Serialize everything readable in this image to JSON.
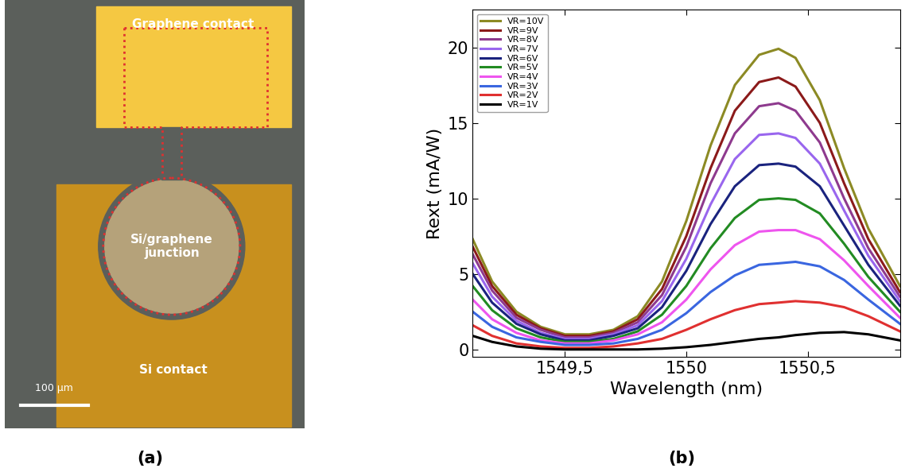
{
  "panel_labels": [
    "(a)",
    "(b)"
  ],
  "micrograph": {
    "labels": {
      "graphene_contact": "Graphene contact",
      "junction": "Si/graphene\njunction",
      "si_contact": "Si contact"
    },
    "scale_bar": "100 μm"
  },
  "chart_data": {
    "type": "line",
    "x_label": "Wavelength (nm)",
    "y_label": "Rext (mA/W)",
    "x": [
      1549.12,
      1549.2,
      1549.3,
      1549.4,
      1549.5,
      1549.6,
      1549.7,
      1549.8,
      1549.9,
      1550.0,
      1550.1,
      1550.2,
      1550.3,
      1550.38,
      1550.45,
      1550.55,
      1550.65,
      1550.75,
      1550.88
    ],
    "xlim": [
      1549.12,
      1550.88
    ],
    "xticks": [
      {
        "value": 1549.5,
        "label": "1549,5"
      },
      1550,
      {
        "value": 1550.5,
        "label": "1550,5"
      }
    ],
    "ylim": [
      -0.5,
      22.5
    ],
    "yticks": [
      0,
      5,
      10,
      15,
      20
    ],
    "grid": false,
    "legend": "upper left",
    "series": [
      {
        "name": "VR=10V",
        "color": "#8c8a24",
        "values": [
          7.3,
          4.5,
          2.5,
          1.5,
          1.0,
          1.0,
          1.3,
          2.2,
          4.5,
          8.5,
          13.5,
          17.5,
          19.5,
          19.9,
          19.3,
          16.5,
          12.0,
          8.0,
          4.2
        ]
      },
      {
        "name": "VR=9V",
        "color": "#8b1a1a",
        "values": [
          6.8,
          4.2,
          2.3,
          1.4,
          0.9,
          0.9,
          1.2,
          2.0,
          4.0,
          7.5,
          12.0,
          15.8,
          17.7,
          18.0,
          17.4,
          15.0,
          11.0,
          7.3,
          3.8
        ]
      },
      {
        "name": "VR=8V",
        "color": "#8e3a8e",
        "values": [
          6.3,
          3.9,
          2.1,
          1.3,
          0.8,
          0.8,
          1.1,
          1.8,
          3.6,
          6.8,
          11.0,
          14.3,
          16.1,
          16.3,
          15.8,
          13.7,
          10.0,
          6.7,
          3.5
        ]
      },
      {
        "name": "VR=7V",
        "color": "#9966ee",
        "values": [
          5.7,
          3.5,
          1.9,
          1.1,
          0.7,
          0.7,
          1.0,
          1.6,
          3.2,
          6.0,
          9.6,
          12.6,
          14.2,
          14.3,
          14.0,
          12.3,
          9.2,
          6.2,
          3.2
        ]
      },
      {
        "name": "VR=6V",
        "color": "#1a237e",
        "values": [
          5.0,
          3.1,
          1.7,
          1.0,
          0.6,
          0.6,
          0.9,
          1.4,
          2.8,
          5.2,
          8.3,
          10.8,
          12.2,
          12.3,
          12.1,
          10.8,
          8.2,
          5.6,
          2.9
        ]
      },
      {
        "name": "VR=5V",
        "color": "#228b22",
        "values": [
          4.2,
          2.6,
          1.4,
          0.8,
          0.5,
          0.5,
          0.7,
          1.2,
          2.3,
          4.2,
          6.7,
          8.7,
          9.9,
          10.0,
          9.9,
          9.0,
          7.0,
          4.8,
          2.5
        ]
      },
      {
        "name": "VR=4V",
        "color": "#ee55ee",
        "values": [
          3.3,
          2.0,
          1.1,
          0.6,
          0.4,
          0.4,
          0.6,
          1.0,
          1.8,
          3.3,
          5.3,
          6.9,
          7.8,
          7.9,
          7.9,
          7.3,
          5.9,
          4.2,
          2.1
        ]
      },
      {
        "name": "VR=3V",
        "color": "#3a66e0",
        "values": [
          2.5,
          1.5,
          0.8,
          0.5,
          0.3,
          0.3,
          0.4,
          0.7,
          1.3,
          2.4,
          3.8,
          4.9,
          5.6,
          5.7,
          5.8,
          5.5,
          4.6,
          3.3,
          1.7
        ]
      },
      {
        "name": "VR=2V",
        "color": "#e03030",
        "values": [
          1.6,
          0.9,
          0.4,
          0.2,
          0.1,
          0.1,
          0.2,
          0.4,
          0.7,
          1.3,
          2.0,
          2.6,
          3.0,
          3.1,
          3.2,
          3.1,
          2.8,
          2.2,
          1.2
        ]
      },
      {
        "name": "VR=1V",
        "color": "#000000",
        "values": [
          0.9,
          0.5,
          0.2,
          0.05,
          0,
          0,
          0,
          0,
          0.05,
          0.15,
          0.3,
          0.5,
          0.7,
          0.8,
          0.95,
          1.1,
          1.15,
          1.0,
          0.6
        ]
      }
    ]
  }
}
